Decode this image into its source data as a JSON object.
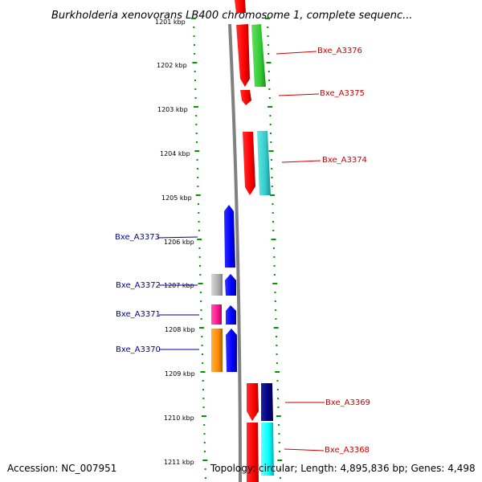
{
  "map": {
    "title": "Burkholderia xenovorans LB400 chromosome 1, complete sequenc...",
    "top_partial_label": "1201 kbp",
    "kbp_labels": [
      "1202 kbp",
      "1203 kbp",
      "1204 kbp",
      "1205 kbp",
      "1206 kbp",
      "1207 kbp",
      "1208 kbp",
      "1209 kbp",
      "1210 kbp",
      "1211 kbp"
    ],
    "genes_forward": [
      {
        "name": "Bxe_A3376",
        "color": "#ff0000",
        "companion_color": "#33cc33"
      },
      {
        "name": "Bxe_A3375",
        "color": "#ff0000"
      },
      {
        "name": "Bxe_A3374",
        "color": "#ff0000",
        "companion_color": "#33cccc"
      },
      {
        "name": "Bxe_A3369",
        "color": "#ff0000",
        "companion_color": "#000080"
      },
      {
        "name": "Bxe_A3368",
        "color": "#ff0000",
        "companion_color": "#00ffff"
      }
    ],
    "genes_reverse": [
      {
        "name": "Bxe_A3373",
        "color": "#0000ff"
      },
      {
        "name": "Bxe_A3372",
        "color": "#0000ff",
        "companion_color": "#b0b0b0"
      },
      {
        "name": "Bxe_A3371",
        "color": "#0000ff",
        "companion_color": "#ff1493"
      },
      {
        "name": "Bxe_A3370",
        "color": "#0000ff",
        "companion_color": "#ff8c00"
      }
    ],
    "colors": {
      "forward_label": "#cc0000",
      "reverse_label": "#000099",
      "ruler_dots": "#009900",
      "backbone": "#808080"
    }
  },
  "footer": {
    "accession": "Accession: NC_007951",
    "summary": "Topology: circular; Length: 4,895,836 bp; Genes: 4,498"
  }
}
